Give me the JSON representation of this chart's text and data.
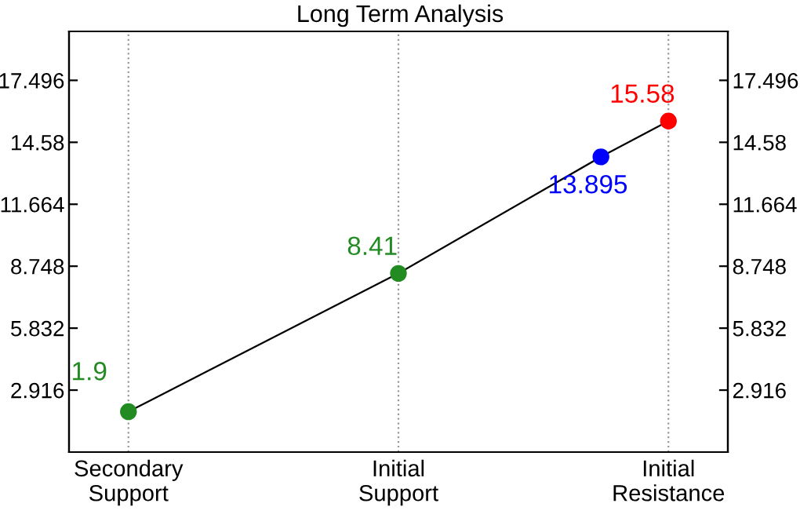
{
  "chart_data": {
    "type": "line",
    "title": "Long Term Analysis",
    "categories": [
      "Secondary\nSupport",
      null,
      null,
      null,
      "Initial\nSupport",
      null,
      null,
      null,
      "Initial\nResistance"
    ],
    "values": [
      1.9,
      null,
      null,
      null,
      8.41,
      null,
      null,
      13.895,
      15.58
    ],
    "colors": [
      "#228b22",
      null,
      null,
      null,
      "#228b22",
      null,
      null,
      "#0000ff",
      "#ff0000"
    ],
    "value_labels": [
      "1.9",
      null,
      null,
      null,
      "8.41",
      null,
      null,
      "13.895",
      "15.58"
    ],
    "color": "#000000",
    "marker": "circle",
    "ylim": [
      0,
      19.8
    ],
    "yticks": [
      2.916,
      5.832,
      8.748,
      11.664,
      14.58,
      17.496
    ],
    "y2lim": [
      0,
      19.8
    ],
    "y2ticks": [
      2.916,
      5.832,
      8.748,
      11.664,
      14.58,
      17.496
    ],
    "grid": "x"
  }
}
